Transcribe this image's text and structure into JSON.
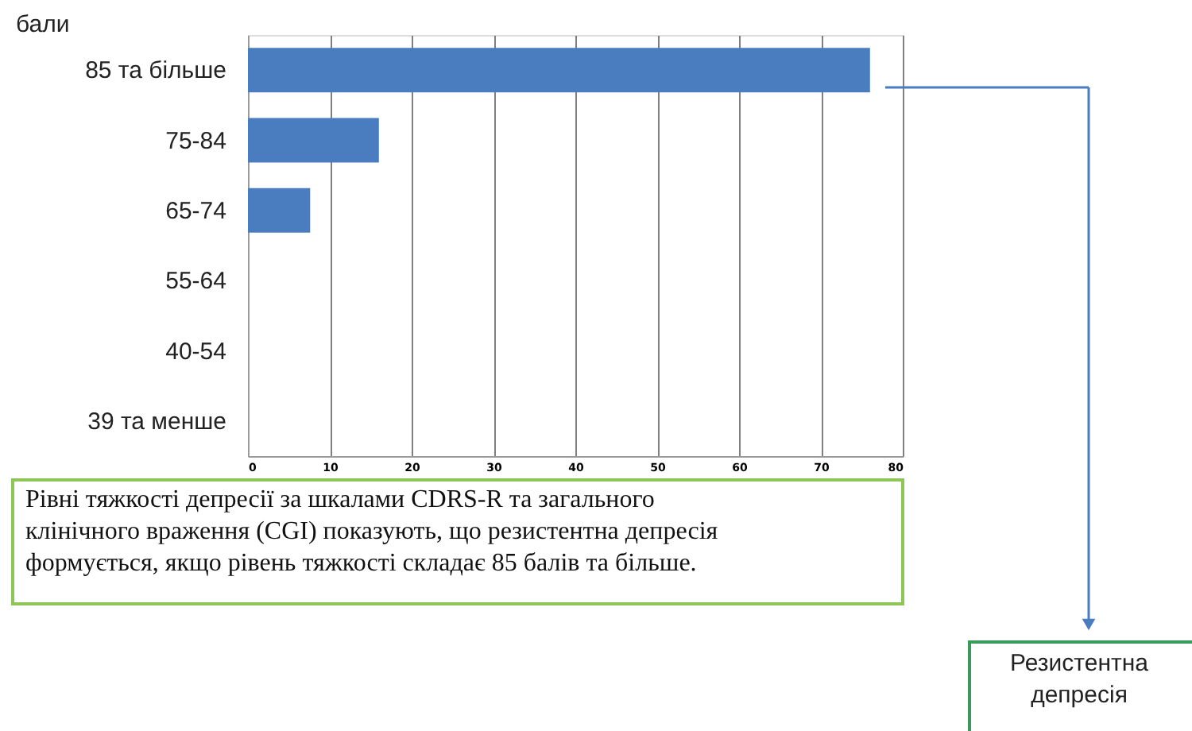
{
  "chart_data": {
    "type": "bar",
    "orientation": "horizontal",
    "ylabel": "бали",
    "categories": [
      "85 та більше",
      "75-84",
      "65-74",
      "55-64",
      "40-54",
      "39 та менше"
    ],
    "values": [
      76,
      16,
      7.6,
      null,
      null,
      null
    ],
    "color": "#4a7cc0",
    "xlim": [
      0,
      80
    ],
    "xticks": [
      0,
      10,
      20,
      30,
      40,
      50,
      60,
      70,
      80
    ],
    "grid": "x",
    "annotations": [
      "Рівні тяжкості  депресії за  шкалами CDRS-R та загального клінічного враження (CGI) показують, що резистентна депресія  формується, якщо рівень тяжкості складає 85 балів та більше.",
      "Резистентна депресія"
    ]
  }
}
